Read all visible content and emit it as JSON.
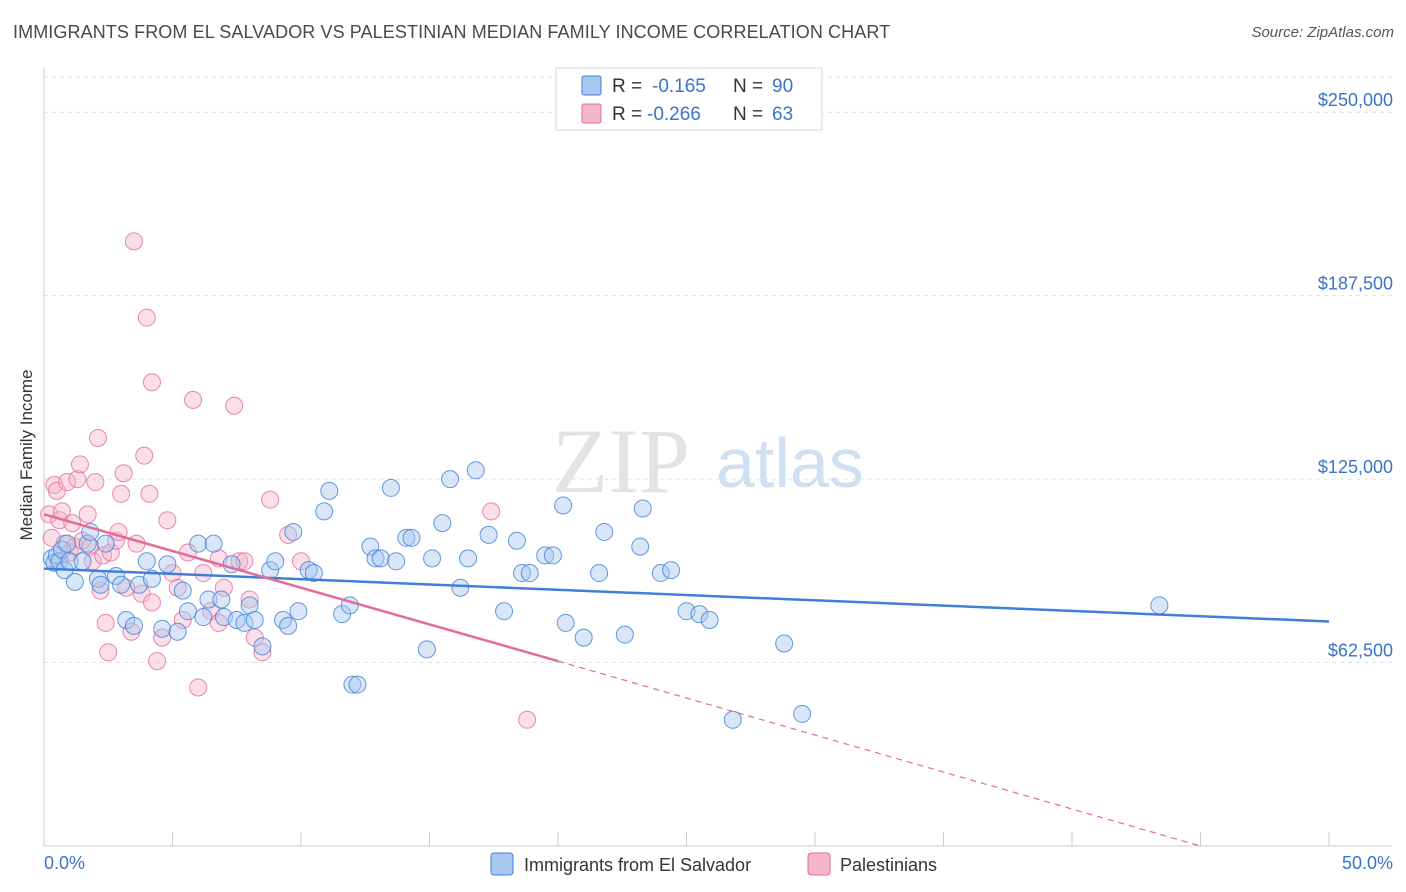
{
  "header": {
    "title": "IMMIGRANTS FROM EL SALVADOR VS PALESTINIAN MEDIAN FAMILY INCOME CORRELATION CHART",
    "source": "Source: ZipAtlas.com"
  },
  "watermark": {
    "part1": "ZIP",
    "part2": "atlas"
  },
  "colors": {
    "blue": "#3f7fd8",
    "blue_fill": "#a9c8ef",
    "pink": "#e36b98",
    "pink_fill": "#f3b5cb",
    "axis_text": "#3a73c8",
    "grid": "#dde1e6"
  },
  "legend": {
    "rows": [
      {
        "r_label": "R =",
        "r_value": "-0.165",
        "n_label": "N =",
        "n_value": "90"
      },
      {
        "r_label": "R =",
        "r_value": "-0.266",
        "n_label": "N =",
        "n_value": "63"
      }
    ]
  },
  "chart_data": {
    "type": "scatter",
    "title": "IMMIGRANTS FROM EL SALVADOR VS PALESTINIAN MEDIAN FAMILY INCOME CORRELATION CHART",
    "xlabel": "",
    "ylabel": "Median Family Income",
    "xlim": [
      0,
      50
    ],
    "ylim": [
      0,
      262000
    ],
    "x_tick_labels": [
      "0.0%",
      "50.0%"
    ],
    "y_ticks": [
      62500,
      125000,
      187500,
      250000
    ],
    "y_tick_labels": [
      "$62,500",
      "$125,000",
      "$187,500",
      "$250,000"
    ],
    "grid": true,
    "legend_position": "top-center",
    "series": [
      {
        "name": "Immigrants from El Salvador",
        "color": "#3f7fd8",
        "r": -0.165,
        "n": 90,
        "trend": {
          "x": [
            0,
            50
          ],
          "y": [
            94500,
            76500
          ]
        },
        "points": [
          [
            0.3,
            98000
          ],
          [
            0.4,
            96500
          ],
          [
            0.5,
            99000
          ],
          [
            0.6,
            97000
          ],
          [
            0.7,
            101000
          ],
          [
            0.8,
            94000
          ],
          [
            0.9,
            103000
          ],
          [
            1.0,
            97000
          ],
          [
            1.2,
            90000
          ],
          [
            1.5,
            97000
          ],
          [
            1.7,
            103000
          ],
          [
            1.8,
            107000
          ],
          [
            2.1,
            91000
          ],
          [
            2.2,
            89000
          ],
          [
            2.4,
            103000
          ],
          [
            2.8,
            92000
          ],
          [
            3.0,
            89000
          ],
          [
            3.2,
            77000
          ],
          [
            3.5,
            75000
          ],
          [
            3.7,
            89000
          ],
          [
            4.0,
            97000
          ],
          [
            4.2,
            91000
          ],
          [
            4.6,
            74000
          ],
          [
            4.8,
            96000
          ],
          [
            5.2,
            73000
          ],
          [
            5.4,
            87000
          ],
          [
            5.6,
            80000
          ],
          [
            6.0,
            103000
          ],
          [
            6.2,
            78000
          ],
          [
            6.4,
            84000
          ],
          [
            6.6,
            103000
          ],
          [
            6.9,
            84000
          ],
          [
            7.0,
            78000
          ],
          [
            7.3,
            96000
          ],
          [
            7.5,
            77000
          ],
          [
            7.8,
            76000
          ],
          [
            8.0,
            82000
          ],
          [
            8.2,
            77000
          ],
          [
            8.5,
            68000
          ],
          [
            8.8,
            94000
          ],
          [
            9.0,
            97000
          ],
          [
            9.3,
            77000
          ],
          [
            9.5,
            75000
          ],
          [
            9.7,
            107000
          ],
          [
            9.9,
            80000
          ],
          [
            10.3,
            94000
          ],
          [
            10.5,
            93000
          ],
          [
            10.9,
            114000
          ],
          [
            11.1,
            121000
          ],
          [
            11.6,
            79000
          ],
          [
            11.9,
            82000
          ],
          [
            12.0,
            55000
          ],
          [
            12.2,
            55000
          ],
          [
            12.7,
            102000
          ],
          [
            12.9,
            98000
          ],
          [
            13.1,
            98000
          ],
          [
            13.5,
            122000
          ],
          [
            13.7,
            97000
          ],
          [
            14.1,
            105000
          ],
          [
            14.3,
            105000
          ],
          [
            14.9,
            67000
          ],
          [
            15.1,
            98000
          ],
          [
            15.5,
            110000
          ],
          [
            15.8,
            125000
          ],
          [
            16.2,
            88000
          ],
          [
            16.5,
            98000
          ],
          [
            16.8,
            128000
          ],
          [
            17.3,
            106000
          ],
          [
            17.9,
            80000
          ],
          [
            18.4,
            104000
          ],
          [
            18.6,
            93000
          ],
          [
            18.9,
            93000
          ],
          [
            19.5,
            99000
          ],
          [
            19.8,
            99000
          ],
          [
            20.2,
            116000
          ],
          [
            20.3,
            76000
          ],
          [
            21.0,
            71000
          ],
          [
            21.6,
            93000
          ],
          [
            21.8,
            107000
          ],
          [
            22.6,
            72000
          ],
          [
            23.2,
            102000
          ],
          [
            23.3,
            115000
          ],
          [
            24.0,
            93000
          ],
          [
            24.4,
            94000
          ],
          [
            25.0,
            80000
          ],
          [
            25.5,
            79000
          ],
          [
            25.9,
            77000
          ],
          [
            28.8,
            69000
          ],
          [
            29.5,
            45000
          ],
          [
            26.8,
            43000
          ],
          [
            43.4,
            82000
          ]
        ]
      },
      {
        "name": "Palestinians",
        "color": "#e36b98",
        "r": -0.266,
        "n": 63,
        "trend": {
          "x": [
            0,
            20
          ],
          "y": [
            113000,
            63000
          ]
        },
        "trend_dashed": {
          "x": [
            20,
            45
          ],
          "y": [
            63000,
            0
          ]
        },
        "points": [
          [
            0.2,
            113000
          ],
          [
            0.3,
            105000
          ],
          [
            0.4,
            123000
          ],
          [
            0.5,
            121000
          ],
          [
            0.6,
            111000
          ],
          [
            0.7,
            114000
          ],
          [
            0.8,
            103000
          ],
          [
            0.9,
            124000
          ],
          [
            1.0,
            100000
          ],
          [
            1.1,
            110000
          ],
          [
            1.2,
            102000
          ],
          [
            1.3,
            125000
          ],
          [
            1.4,
            130000
          ],
          [
            1.5,
            104000
          ],
          [
            1.7,
            113000
          ],
          [
            1.8,
            102000
          ],
          [
            1.9,
            97000
          ],
          [
            2.0,
            124000
          ],
          [
            2.1,
            139000
          ],
          [
            2.2,
            87000
          ],
          [
            2.3,
            99000
          ],
          [
            2.4,
            76000
          ],
          [
            2.5,
            66000
          ],
          [
            2.6,
            100000
          ],
          [
            2.8,
            104000
          ],
          [
            2.9,
            107000
          ],
          [
            3.0,
            120000
          ],
          [
            3.1,
            127000
          ],
          [
            3.2,
            88000
          ],
          [
            3.4,
            73000
          ],
          [
            3.6,
            103000
          ],
          [
            3.8,
            86000
          ],
          [
            3.9,
            133000
          ],
          [
            4.1,
            120000
          ],
          [
            4.2,
            83000
          ],
          [
            4.4,
            63000
          ],
          [
            4.6,
            71000
          ],
          [
            4.8,
            111000
          ],
          [
            5.0,
            93000
          ],
          [
            5.2,
            88000
          ],
          [
            5.4,
            77000
          ],
          [
            5.6,
            100000
          ],
          [
            5.8,
            152000
          ],
          [
            6.0,
            54000
          ],
          [
            6.2,
            93000
          ],
          [
            6.5,
            80000
          ],
          [
            6.8,
            76000
          ],
          [
            7.0,
            88000
          ],
          [
            7.4,
            150000
          ],
          [
            7.6,
            97000
          ],
          [
            7.8,
            97000
          ],
          [
            8.0,
            84000
          ],
          [
            8.2,
            71000
          ],
          [
            8.5,
            66000
          ],
          [
            8.8,
            118000
          ],
          [
            9.5,
            106000
          ],
          [
            10.0,
            97000
          ],
          [
            3.5,
            206000
          ],
          [
            4.0,
            180000
          ],
          [
            4.2,
            158000
          ],
          [
            6.8,
            98000
          ],
          [
            17.4,
            114000
          ],
          [
            18.8,
            43000
          ]
        ]
      }
    ]
  },
  "bottom_legend": {
    "items": [
      {
        "label": "Immigrants from El Salvador"
      },
      {
        "label": "Palestinians"
      }
    ]
  }
}
